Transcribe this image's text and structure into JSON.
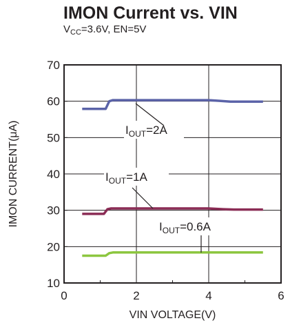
{
  "title": "IMON Current vs. VIN",
  "subtitle": {
    "v_prefix": "V",
    "v_sub": "CC",
    "rest": "=3.6V, EN=5V"
  },
  "chart_data": {
    "type": "line",
    "title": "IMON Current vs. VIN",
    "subtitle": "VCC=3.6V, EN=5V",
    "xlabel": "VIN VOLTAGE(V)",
    "ylabel": "IMON CURRENT(μA)",
    "xlim": [
      0,
      6
    ],
    "ylim": [
      10,
      70
    ],
    "xticks": [
      0,
      2,
      4,
      6
    ],
    "yticks": [
      10,
      20,
      30,
      40,
      50,
      60,
      70
    ],
    "grid": true,
    "series": [
      {
        "name": "IOUT=2A",
        "label_prefix": "I",
        "label_sub": "OUT",
        "label_rest": "=2A",
        "color": "#5b63a8",
        "x": [
          0.5,
          1.15,
          1.25,
          1.35,
          2.0,
          3.0,
          4.0,
          4.3,
          4.6,
          5.5
        ],
        "y": [
          57.9,
          57.9,
          60.0,
          60.3,
          60.3,
          60.3,
          60.3,
          60.1,
          59.9,
          59.9
        ]
      },
      {
        "name": "IOUT=1A",
        "label_prefix": "I",
        "label_sub": "OUT",
        "label_rest": "=1A",
        "color": "#8b2c55",
        "x": [
          0.5,
          1.1,
          1.2,
          1.3,
          2.0,
          3.0,
          4.0,
          4.4,
          4.7,
          5.5
        ],
        "y": [
          29.0,
          29.0,
          30.3,
          30.5,
          30.5,
          30.5,
          30.5,
          30.3,
          30.2,
          30.2
        ]
      },
      {
        "name": "IOUT=0.6A",
        "label_prefix": "I",
        "label_sub": "OUT",
        "label_rest": "=0.6A",
        "color": "#8cc63f",
        "x": [
          0.5,
          1.15,
          1.25,
          1.35,
          2.0,
          3.0,
          4.0,
          5.5
        ],
        "y": [
          17.5,
          17.5,
          18.2,
          18.4,
          18.4,
          18.4,
          18.4,
          18.4
        ]
      }
    ]
  }
}
